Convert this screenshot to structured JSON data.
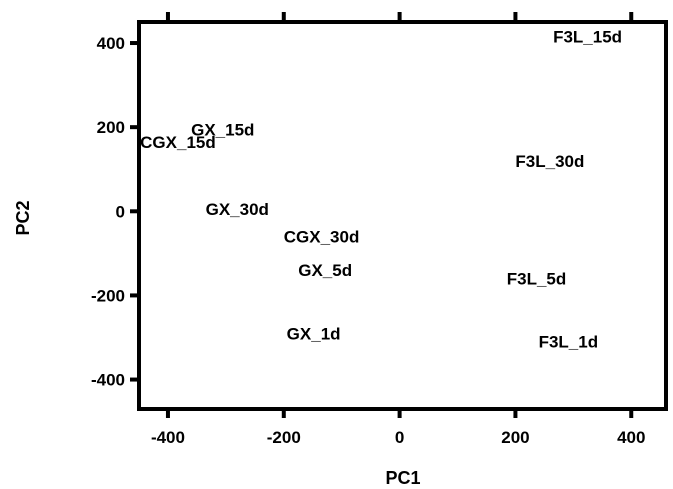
{
  "chart_data": {
    "type": "scatter",
    "title": "",
    "xlabel": "PC1",
    "ylabel": "PC2",
    "xlim": [
      -450,
      460
    ],
    "ylim": [
      -470,
      450
    ],
    "xticks": [
      -400,
      -200,
      0,
      200,
      400
    ],
    "yticks": [
      -400,
      -200,
      0,
      200,
      400
    ],
    "xtick_labels": [
      "-400",
      "-200",
      "0",
      "200",
      "400"
    ],
    "ytick_labels": [
      "-400",
      "-200",
      "0",
      "200",
      "400"
    ],
    "grid": false,
    "legend": "none",
    "points": [
      {
        "label": "F3L_15d",
        "x": 265,
        "y": 415
      },
      {
        "label": "GX_15d",
        "x": -360,
        "y": 195
      },
      {
        "label": "CGX_15d",
        "x": -448,
        "y": 165
      },
      {
        "label": "F3L_30d",
        "x": 200,
        "y": 120
      },
      {
        "label": "GX_30d",
        "x": -335,
        "y": 5
      },
      {
        "label": "CGX_30d",
        "x": -200,
        "y": -60
      },
      {
        "label": "GX_5d",
        "x": -175,
        "y": -140
      },
      {
        "label": "F3L_5d",
        "x": 185,
        "y": -160
      },
      {
        "label": "GX_1d",
        "x": -195,
        "y": -290
      },
      {
        "label": "F3L_1d",
        "x": 240,
        "y": -310
      }
    ]
  }
}
